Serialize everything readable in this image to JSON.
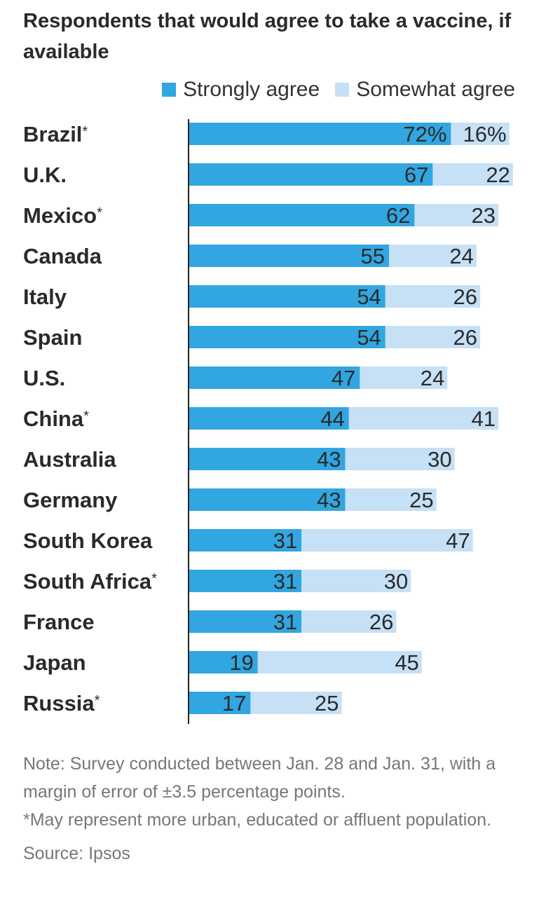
{
  "title": "Respondents that would agree to take  a vaccine, if available",
  "legend": {
    "strongly": "Strongly agree",
    "somewhat": "Somewhat agree"
  },
  "colors": {
    "strongly": "#31a6e0",
    "somewhat": "#c6e0f5",
    "axis": "#222222"
  },
  "chart_data": {
    "type": "bar",
    "orientation": "horizontal",
    "stacked": true,
    "categories": [
      "Brazil",
      "U.K.",
      "Mexico",
      "Canada",
      "Italy",
      "Spain",
      "U.S.",
      "China",
      "Australia",
      "Germany",
      "South Korea",
      "South Africa",
      "France",
      "Japan",
      "Russia"
    ],
    "category_footnote": [
      true,
      false,
      true,
      false,
      false,
      false,
      false,
      true,
      false,
      false,
      false,
      true,
      false,
      false,
      true
    ],
    "series": [
      {
        "name": "Strongly agree",
        "values": [
          72,
          67,
          62,
          55,
          54,
          54,
          47,
          44,
          43,
          43,
          31,
          31,
          31,
          19,
          17
        ]
      },
      {
        "name": "Somewhat agree",
        "values": [
          16,
          22,
          23,
          24,
          26,
          26,
          24,
          41,
          30,
          25,
          47,
          30,
          26,
          45,
          25
        ]
      }
    ],
    "first_row_suffix": "%",
    "xlim": [
      0,
      100
    ],
    "grid": false
  },
  "notes": {
    "note": "Note: Survey conducted between Jan. 28 and Jan. 31, with a margin of error of ±3.5 percentage points.",
    "footnote": "*May represent more urban, educated or affluent population.",
    "source": "Source: Ipsos"
  }
}
